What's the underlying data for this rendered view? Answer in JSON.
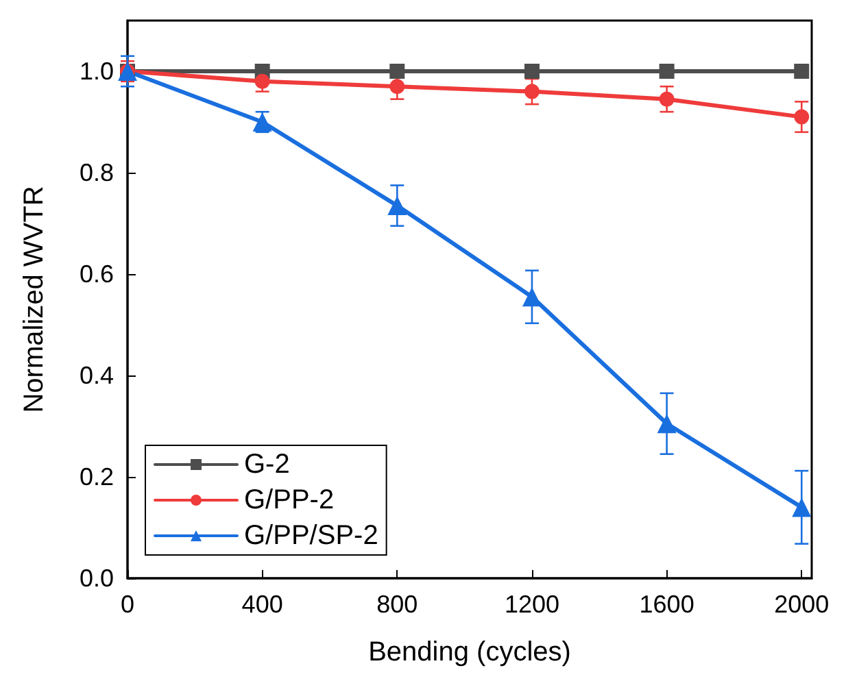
{
  "chart_data": {
    "type": "line",
    "xlabel": "Bending (cycles)",
    "ylabel": "Normalized WVTR",
    "x": [
      0,
      400,
      800,
      1200,
      1600,
      2000
    ],
    "xlim": [
      0,
      2030
    ],
    "xticks": [
      0,
      400,
      800,
      1200,
      1600,
      2000
    ],
    "ylim": [
      0,
      1.1
    ],
    "yticks": [
      {
        "value": 0,
        "label": "0.0"
      },
      0.2,
      0.4,
      0.6,
      0.8,
      {
        "value": 1,
        "label": "1.0"
      }
    ],
    "series": [
      {
        "name": "G-2",
        "color": "#4d4d4d",
        "marker": "square",
        "values": [
          1,
          1,
          1,
          1,
          1,
          1
        ]
      },
      {
        "name": "G/PP-2",
        "color": "#ef3b3b",
        "marker": "circle",
        "values": [
          1,
          0.98,
          0.97,
          0.96,
          0.945,
          0.91
        ],
        "errors": [
          0.02,
          0.02,
          0.025,
          0.025,
          0.025,
          0.03
        ]
      },
      {
        "name": "G/PP/SP-2",
        "color": "#1a6fdf",
        "marker": "triangle",
        "values": [
          1,
          0.9,
          0.735,
          0.555,
          0.305,
          0.14
        ],
        "errors": [
          0.03,
          0.02,
          0.04,
          0.052,
          0.06,
          0.072
        ]
      }
    ],
    "legend": "bottom left",
    "grid": false,
    "line_style": "solid"
  }
}
